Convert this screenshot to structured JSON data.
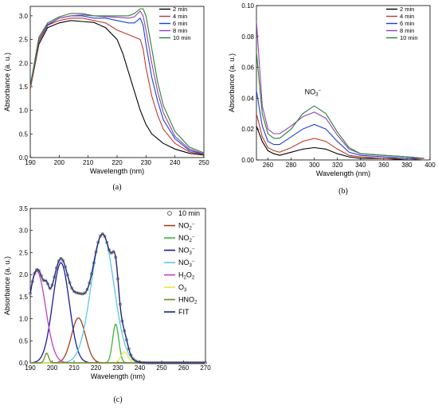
{
  "chart_data": [
    {
      "panel_label": "(a)",
      "type": "line",
      "xlabel": "Wavelength (nm)",
      "ylabel": "Absorbance (a. u.)",
      "xlim": [
        190,
        250
      ],
      "ylim": [
        0,
        3.2
      ],
      "xticks": [
        "190",
        "200",
        "210",
        "220",
        "230",
        "240",
        "250"
      ],
      "yticks": [
        "0.0",
        "0.5",
        "1.0",
        "1.5",
        "2.0",
        "2.5",
        "3.0"
      ],
      "legend": "top-right",
      "series": [
        {
          "name": "2 min",
          "color": "#000000",
          "x": [
            190,
            193,
            196,
            200,
            204,
            208,
            212,
            216,
            220,
            222,
            224,
            226,
            228,
            230,
            232,
            236,
            240,
            245,
            250
          ],
          "y": [
            1.45,
            2.4,
            2.75,
            2.85,
            2.9,
            2.88,
            2.86,
            2.75,
            2.5,
            2.2,
            1.8,
            1.4,
            1.0,
            0.7,
            0.5,
            0.3,
            0.18,
            0.09,
            0.05
          ]
        },
        {
          "name": "4 min",
          "color": "#c0392b",
          "x": [
            190,
            193,
            196,
            200,
            204,
            208,
            212,
            216,
            220,
            224,
            226,
            228,
            229,
            230,
            232,
            234,
            236,
            240,
            245,
            250
          ],
          "y": [
            1.45,
            2.45,
            2.8,
            2.9,
            2.95,
            2.95,
            2.9,
            2.85,
            2.7,
            2.6,
            2.55,
            2.5,
            2.3,
            1.9,
            1.3,
            0.9,
            0.6,
            0.3,
            0.12,
            0.06
          ]
        },
        {
          "name": "6 min",
          "color": "#1f3fd6",
          "x": [
            190,
            193,
            196,
            200,
            204,
            208,
            212,
            216,
            220,
            224,
            226,
            228,
            229,
            230,
            232,
            234,
            236,
            240,
            245,
            250
          ],
          "y": [
            1.5,
            2.5,
            2.8,
            2.95,
            3.0,
            3.0,
            2.95,
            2.95,
            2.9,
            2.85,
            2.85,
            2.95,
            2.8,
            2.4,
            1.7,
            1.2,
            0.8,
            0.4,
            0.15,
            0.07
          ]
        },
        {
          "name": "8 min",
          "color": "#8e44ad",
          "x": [
            190,
            193,
            196,
            200,
            204,
            208,
            212,
            216,
            220,
            224,
            226,
            228,
            229,
            230,
            232,
            234,
            236,
            240,
            245,
            250
          ],
          "y": [
            1.5,
            2.5,
            2.82,
            2.95,
            3.0,
            3.02,
            3.0,
            2.98,
            2.97,
            2.95,
            2.98,
            3.1,
            3.0,
            2.7,
            2.0,
            1.4,
            0.95,
            0.45,
            0.18,
            0.08
          ]
        },
        {
          "name": "10 min",
          "color": "#2e7d32",
          "x": [
            190,
            193,
            196,
            200,
            204,
            208,
            212,
            216,
            220,
            224,
            226,
            228,
            229,
            230,
            232,
            234,
            236,
            240,
            245,
            250
          ],
          "y": [
            1.52,
            2.55,
            2.85,
            2.98,
            3.05,
            3.05,
            3.0,
            3.0,
            3.0,
            3.0,
            3.05,
            3.15,
            3.15,
            3.0,
            2.3,
            1.6,
            1.1,
            0.55,
            0.22,
            0.1
          ]
        }
      ]
    },
    {
      "panel_label": "(b)",
      "type": "line",
      "xlabel": "Wavelength (nm)",
      "ylabel": "Absorbance (a. u.)",
      "xlim": [
        250,
        400
      ],
      "ylim": [
        0,
        0.1
      ],
      "xticks": [
        "260",
        "280",
        "300",
        "320",
        "340",
        "360",
        "380",
        "400"
      ],
      "yticks": [
        "0.00",
        "0.02",
        "0.04",
        "0.06",
        "0.08",
        "0.10"
      ],
      "legend": "top-right",
      "annotations": [
        {
          "text_base": "NO",
          "sub": "3",
          "sup": "−",
          "x": 300,
          "y": 0.044
        }
      ],
      "series": [
        {
          "name": "2 min",
          "color": "#000000",
          "x": [
            250,
            255,
            260,
            265,
            270,
            280,
            290,
            300,
            310,
            320,
            330,
            340,
            360,
            380,
            395
          ],
          "y": [
            0.022,
            0.012,
            0.006,
            0.004,
            0.003,
            0.005,
            0.007,
            0.008,
            0.007,
            0.004,
            0.002,
            0.001,
            0.001,
            0.0,
            0.0
          ]
        },
        {
          "name": "4 min",
          "color": "#c0392b",
          "x": [
            250,
            255,
            260,
            265,
            270,
            280,
            290,
            300,
            310,
            320,
            330,
            340,
            360,
            380,
            395
          ],
          "y": [
            0.03,
            0.015,
            0.008,
            0.006,
            0.005,
            0.008,
            0.012,
            0.014,
            0.012,
            0.007,
            0.003,
            0.002,
            0.001,
            0.001,
            0.0
          ]
        },
        {
          "name": "6 min",
          "color": "#1f3fd6",
          "x": [
            250,
            255,
            260,
            265,
            270,
            280,
            290,
            300,
            310,
            320,
            330,
            340,
            360,
            380,
            395
          ],
          "y": [
            0.045,
            0.022,
            0.012,
            0.01,
            0.01,
            0.015,
            0.02,
            0.023,
            0.02,
            0.012,
            0.005,
            0.003,
            0.002,
            0.001,
            0.001
          ]
        },
        {
          "name": "8 min",
          "color": "#8e44ad",
          "x": [
            250,
            255,
            260,
            265,
            270,
            280,
            290,
            300,
            310,
            320,
            330,
            340,
            360,
            380,
            395
          ],
          "y": [
            0.09,
            0.035,
            0.02,
            0.017,
            0.017,
            0.022,
            0.028,
            0.031,
            0.027,
            0.016,
            0.007,
            0.004,
            0.003,
            0.002,
            0.001
          ]
        },
        {
          "name": "10 min",
          "color": "#2e7d32",
          "x": [
            250,
            255,
            260,
            265,
            270,
            280,
            290,
            300,
            310,
            320,
            330,
            340,
            360,
            380,
            395
          ],
          "y": [
            0.07,
            0.03,
            0.017,
            0.014,
            0.014,
            0.02,
            0.03,
            0.035,
            0.03,
            0.018,
            0.008,
            0.004,
            0.003,
            0.002,
            0.001
          ]
        }
      ]
    },
    {
      "panel_label": "(c)",
      "type": "line",
      "xlabel": "Wavelength (nm)",
      "ylabel": "Absorbance (a. u.)",
      "xlim": [
        190,
        270
      ],
      "ylim": [
        0,
        3.5
      ],
      "xticks": [
        "190",
        "200",
        "210",
        "220",
        "230",
        "240",
        "250",
        "260",
        "270"
      ],
      "yticks": [
        "0.0",
        "0.5",
        "1.0",
        "1.5",
        "2.0",
        "2.5",
        "3.0",
        "3.5"
      ],
      "legend": "top-right",
      "scatter": {
        "name": "10 min",
        "color": "#555555"
      },
      "components": [
        {
          "name_base": "NO",
          "sub": "2",
          "sup": "−",
          "color": "#a0401a",
          "center": 212,
          "amp": 1.02,
          "width": 3.2
        },
        {
          "name_base": "NO",
          "sub": "2",
          "sup": "−",
          "color": "#3cb43c",
          "center": 229,
          "amp": 0.88,
          "width": 1.4
        },
        {
          "name_base": "NO",
          "sub": "3",
          "sup": "−",
          "color": "#1a1aa0",
          "center": 204,
          "amp": 2.27,
          "width": 3.8
        },
        {
          "name_base": "NO",
          "sub": "3",
          "sup": "−",
          "color": "#5bc8e8",
          "center": 223,
          "amp": 2.92,
          "width": 5.2
        },
        {
          "name_base": "H",
          "sub": "2",
          "mid": "O",
          "sub2": "2",
          "color": "#c040c0",
          "center": 193,
          "amp": 2.08,
          "width": 4.0
        },
        {
          "name_base": "O",
          "sub": "3",
          "color": "#e8e84a",
          "center": 233,
          "amp": 0.25,
          "width": 1.6
        },
        {
          "name_base": "HNO",
          "sub": "2",
          "color": "#6b8e23",
          "center": 197.5,
          "amp": 0.22,
          "width": 0.9
        }
      ],
      "fit": {
        "name": "FIT",
        "color": "#1a237e"
      }
    }
  ]
}
